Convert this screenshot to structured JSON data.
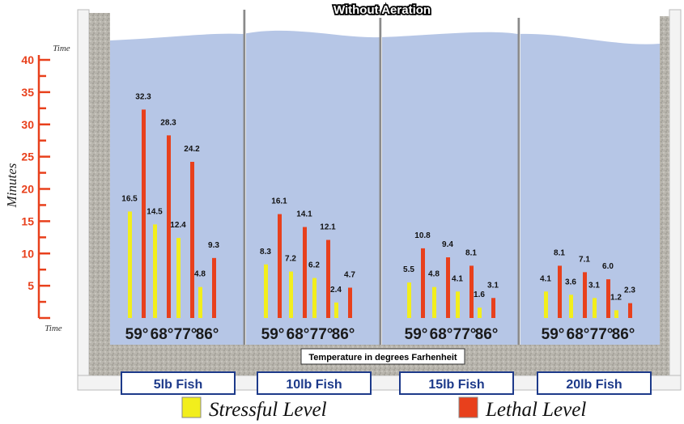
{
  "title": "Without Aeration",
  "y_axis": {
    "label": "Minutes",
    "top_caption": "Time",
    "bottom_caption": "Time",
    "ticks": [
      "5",
      "10",
      "15",
      "20",
      "25",
      "30",
      "35",
      "40"
    ]
  },
  "x_axis_label": "Temperature in degrees Farhenheit",
  "legend": {
    "stressful_label": "Stressful Level",
    "lethal_label": "Lethal Level"
  },
  "colors": {
    "stressful": "#f2ee1c",
    "lethal": "#e8401c",
    "water": "#b6c6e6",
    "axis": "#e8401c",
    "panel_label_text": "#1d3a8a"
  },
  "chart_data": {
    "type": "bar",
    "title": "Without Aeration",
    "xlabel": "Temperature in degrees Farhenheit",
    "ylabel": "Minutes",
    "ylim": [
      0,
      40
    ],
    "temperatures": [
      "59°",
      "68°",
      "77°",
      "86°"
    ],
    "series_names": [
      "Stressful Level",
      "Lethal Level"
    ],
    "groups": [
      {
        "name": "5lb Fish",
        "stressful": [
          16.5,
          14.5,
          12.4,
          4.8
        ],
        "lethal": [
          32.3,
          28.3,
          24.2,
          9.3
        ]
      },
      {
        "name": "10lb Fish",
        "stressful": [
          8.3,
          7.2,
          6.2,
          2.4
        ],
        "lethal": [
          16.1,
          14.1,
          12.1,
          4.7
        ]
      },
      {
        "name": "15lb Fish",
        "stressful": [
          5.5,
          4.8,
          4.1,
          1.6
        ],
        "lethal": [
          10.8,
          9.4,
          8.1,
          3.1
        ]
      },
      {
        "name": "20lb Fish",
        "stressful": [
          4.1,
          3.6,
          3.1,
          1.2
        ],
        "lethal": [
          8.1,
          7.1,
          6.0,
          2.3
        ]
      }
    ]
  }
}
